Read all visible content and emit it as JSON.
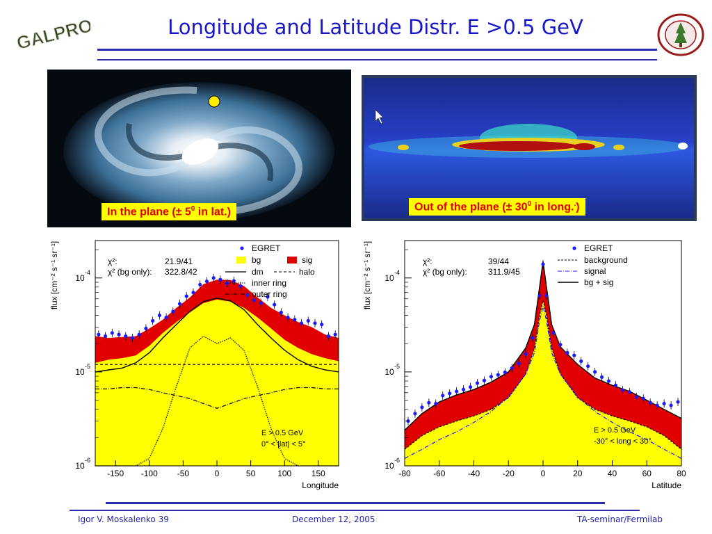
{
  "slide": {
    "title": "Longitude and Latitude Distr. E >0.5 GeV",
    "logo_text": "GALPROP",
    "seal_text": "LELAND STANFORD JUNIOR UNIVERSITY"
  },
  "images": {
    "left_caption_pre": "In the plane (± 5",
    "left_caption_sup": "0",
    "left_caption_post": " in lat.)",
    "right_caption_pre": "Out of the plane (± 30",
    "right_caption_sup": "0",
    "right_caption_post": " in long.",
    "right_caption_tail": ")"
  },
  "footer": {
    "author": "Igor V. Moskalenko  39",
    "date": "December 12, 2005",
    "venue": "TA-seminar/Fermilab"
  },
  "colors": {
    "title": "#1717c8",
    "rule": "#2b2bb0",
    "bg_fill": "#ffff00",
    "sig_fill": "#e00000",
    "egret": "#1a1aff"
  },
  "chart_data": [
    {
      "type": "area",
      "ylabel": "flux [cm⁻² s⁻¹ sr⁻¹]",
      "xlabel": "Longitude",
      "y_scale": "log",
      "ylim": [
        1e-06,
        0.00025
      ],
      "xlim": [
        -180,
        180
      ],
      "x_ticks": [
        -150,
        -100,
        -50,
        0,
        50,
        100,
        150
      ],
      "x_tick_labels": [
        "-150",
        "-100",
        "-50",
        "0",
        "50",
        "100",
        "150"
      ],
      "y_ticks": [
        {
          "base": "10",
          "exp": "-6",
          "v": 1e-06
        },
        {
          "base": "10",
          "exp": "-5",
          "v": 1e-05
        },
        {
          "base": "10",
          "exp": "-4",
          "v": 0.0001
        }
      ],
      "stats": [
        {
          "label": "χ²:",
          "value": "21.9/41"
        },
        {
          "label": "χ² (bg only):",
          "value": "322.8/42"
        }
      ],
      "legend": [
        "EGRET",
        "bg",
        "sig",
        "dm",
        "halo",
        "inner ring",
        "outer ring"
      ],
      "annotation": [
        "E > 0.5 GeV",
        "0° < |lat| < 5°"
      ],
      "x": [
        -180,
        -160,
        -140,
        -120,
        -100,
        -80,
        -60,
        -40,
        -20,
        0,
        20,
        40,
        60,
        80,
        100,
        120,
        140,
        160,
        180
      ],
      "bg": [
        1.25e-05,
        1.35e-05,
        1.4e-05,
        1.5e-05,
        1.9e-05,
        2.6e-05,
        3.4e-05,
        4.3e-05,
        5.4e-05,
        5.9e-05,
        5.6e-05,
        4.8e-05,
        3.8e-05,
        2.9e-05,
        2.2e-05,
        1.8e-05,
        1.55e-05,
        1.4e-05,
        1.3e-05
      ],
      "total": [
        2.4e-05,
        2.3e-05,
        2.35e-05,
        2.4e-05,
        2.9e-05,
        3.6e-05,
        4.8e-05,
        6.2e-05,
        8.6e-05,
        9.6e-05,
        9.5e-05,
        8.2e-05,
        6.2e-05,
        4.8e-05,
        4e-05,
        3.4e-05,
        3e-05,
        2.5e-05,
        2.3e-05
      ],
      "dm": [
        1e-05,
        1.05e-05,
        1.1e-05,
        1.25e-05,
        1.6e-05,
        2.3e-05,
        3.2e-05,
        4.4e-05,
        5.6e-05,
        6.1e-05,
        5.7e-05,
        4.6e-05,
        3.2e-05,
        2.3e-05,
        1.7e-05,
        1.35e-05,
        1.15e-05,
        1.05e-05,
        1e-05
      ],
      "halo": [
        1.2e-05,
        1.2e-05,
        1.2e-05,
        1.2e-05,
        1.2e-05,
        1.2e-05,
        1.2e-05,
        1.2e-05,
        1.2e-05,
        1.2e-05,
        1.2e-05,
        1.2e-05,
        1.2e-05,
        1.2e-05,
        1.2e-05,
        1.2e-05,
        1.2e-05,
        1.2e-05,
        1.2e-05
      ],
      "inner_ring": [
        1e-06,
        1e-06,
        1e-06,
        1e-06,
        1.2e-06,
        2.5e-06,
        7e-06,
        1.8e-05,
        2.4e-05,
        2e-05,
        2.3e-05,
        1.7e-05,
        7e-06,
        2.5e-06,
        1.2e-06,
        1e-06,
        1e-06,
        1e-06,
        1e-06
      ],
      "outer_ring": [
        6.6e-06,
        6.6e-06,
        6.8e-06,
        6.8e-06,
        6.5e-06,
        6e-06,
        5.6e-06,
        5.2e-06,
        4.6e-06,
        4.1e-06,
        4.6e-06,
        5.2e-06,
        5.6e-06,
        6e-06,
        6.5e-06,
        6.8e-06,
        6.8e-06,
        6.6e-06,
        6.6e-06
      ],
      "egret_x": [
        -175,
        -165,
        -155,
        -145,
        -135,
        -125,
        -115,
        -105,
        -95,
        -85,
        -75,
        -65,
        -55,
        -45,
        -35,
        -25,
        -15,
        -5,
        5,
        15,
        25,
        35,
        45,
        55,
        65,
        75,
        85,
        95,
        105,
        115,
        125,
        135,
        145,
        155,
        165,
        175
      ],
      "egret_y": [
        2.5e-05,
        2.4e-05,
        2.6e-05,
        2.5e-05,
        2.4e-05,
        2.3e-05,
        2.5e-05,
        2.9e-05,
        3.5e-05,
        4e-05,
        3.8e-05,
        4.4e-05,
        5.3e-05,
        6.4e-05,
        7e-05,
        8.5e-05,
        9.2e-05,
        0.0001,
        9.6e-05,
        8.8e-05,
        9.3e-05,
        8.2e-05,
        6.6e-05,
        5.8e-05,
        5.4e-05,
        6.3e-05,
        5.2e-05,
        4.3e-05,
        3.8e-05,
        3.6e-05,
        3.3e-05,
        3.5e-05,
        3.3e-05,
        3.2e-05,
        2.4e-05,
        2.5e-05
      ]
    },
    {
      "type": "area",
      "ylabel": "flux [cm⁻² s⁻¹ sr⁻¹]",
      "xlabel": "Latitude",
      "y_scale": "log",
      "ylim": [
        1e-06,
        0.00025
      ],
      "xlim": [
        -80,
        80
      ],
      "x_ticks": [
        -80,
        -60,
        -40,
        -20,
        0,
        20,
        40,
        60,
        80
      ],
      "x_tick_labels": [
        "-80",
        "-60",
        "-40",
        "-20",
        "0",
        "20",
        "40",
        "60",
        "80"
      ],
      "y_ticks": [
        {
          "base": "10",
          "exp": "-6",
          "v": 1e-06
        },
        {
          "base": "10",
          "exp": "-5",
          "v": 1e-05
        },
        {
          "base": "10",
          "exp": "-4",
          "v": 0.0001
        }
      ],
      "stats": [
        {
          "label": "χ²:",
          "value": "39/44"
        },
        {
          "label": "χ² (bg only):",
          "value": "311.9/45"
        }
      ],
      "legend": [
        "EGRET",
        "background",
        "signal",
        "bg + sig"
      ],
      "annotation": [
        "E > 0.5 GeV",
        "-30° < long < 30°"
      ],
      "x": [
        -80,
        -70,
        -60,
        -50,
        -40,
        -30,
        -20,
        -10,
        -5,
        -2,
        0,
        2,
        5,
        10,
        20,
        30,
        40,
        50,
        60,
        70,
        80
      ],
      "bg": [
        1.5e-06,
        2.1e-06,
        2.6e-06,
        3e-06,
        3.4e-06,
        4e-06,
        5.3e-06,
        9.5e-06,
        1.8e-05,
        4e-05,
        5.8e-05,
        4e-05,
        1.8e-05,
        9.5e-06,
        5.3e-06,
        4e-06,
        3.4e-06,
        3e-06,
        2.6e-06,
        2.1e-06,
        1.5e-06
      ],
      "total": [
        2.4e-06,
        3.6e-06,
        4.8e-06,
        5.7e-06,
        6.5e-06,
        7.8e-06,
        1e-05,
        1.8e-05,
        3.2e-05,
        8e-05,
        0.00015,
        8e-05,
        3.2e-05,
        1.85e-05,
        1.2e-05,
        8.6e-06,
        7.2e-06,
        6.2e-06,
        5e-06,
        4e-06,
        3.2e-06
      ],
      "signal": [
        1.2e-06,
        1.5e-06,
        1.9e-06,
        2.3e-06,
        2.9e-06,
        3.8e-06,
        5.4e-06,
        9.5e-06,
        1.6e-05,
        3.5e-05,
        5e-05,
        3.5e-05,
        1.6e-05,
        9.5e-06,
        5.4e-06,
        3.8e-06,
        2.9e-06,
        2.3e-06,
        1.9e-06,
        1.5e-06,
        1.2e-06
      ],
      "egret_x": [
        -78,
        -74,
        -70,
        -66,
        -62,
        -58,
        -54,
        -50,
        -46,
        -42,
        -38,
        -34,
        -30,
        -26,
        -22,
        -18,
        -14,
        -10,
        -6,
        -2,
        0,
        2,
        6,
        10,
        14,
        18,
        22,
        26,
        30,
        34,
        38,
        42,
        46,
        50,
        54,
        58,
        62,
        66,
        70,
        74,
        78
      ],
      "egret_y": [
        3e-06,
        3.6e-06,
        4.2e-06,
        4.7e-06,
        4.6e-06,
        5.6e-06,
        5.9e-06,
        6.2e-06,
        6.5e-06,
        6.9e-06,
        7.6e-06,
        8.1e-06,
        8.9e-06,
        9.3e-06,
        9.9e-06,
        1.1e-05,
        1.23e-05,
        1.55e-05,
        2.3e-05,
        6.5e-05,
        0.00014,
        6.5e-05,
        2.6e-05,
        1.95e-05,
        1.6e-05,
        1.5e-05,
        1.3e-05,
        1.15e-05,
        1e-05,
        8.8e-06,
        8e-06,
        7.2e-06,
        6.4e-06,
        6.1e-06,
        5.4e-06,
        5.2e-06,
        4.7e-06,
        4.4e-06,
        4.6e-06,
        4.4e-06,
        4.8e-06
      ]
    }
  ]
}
